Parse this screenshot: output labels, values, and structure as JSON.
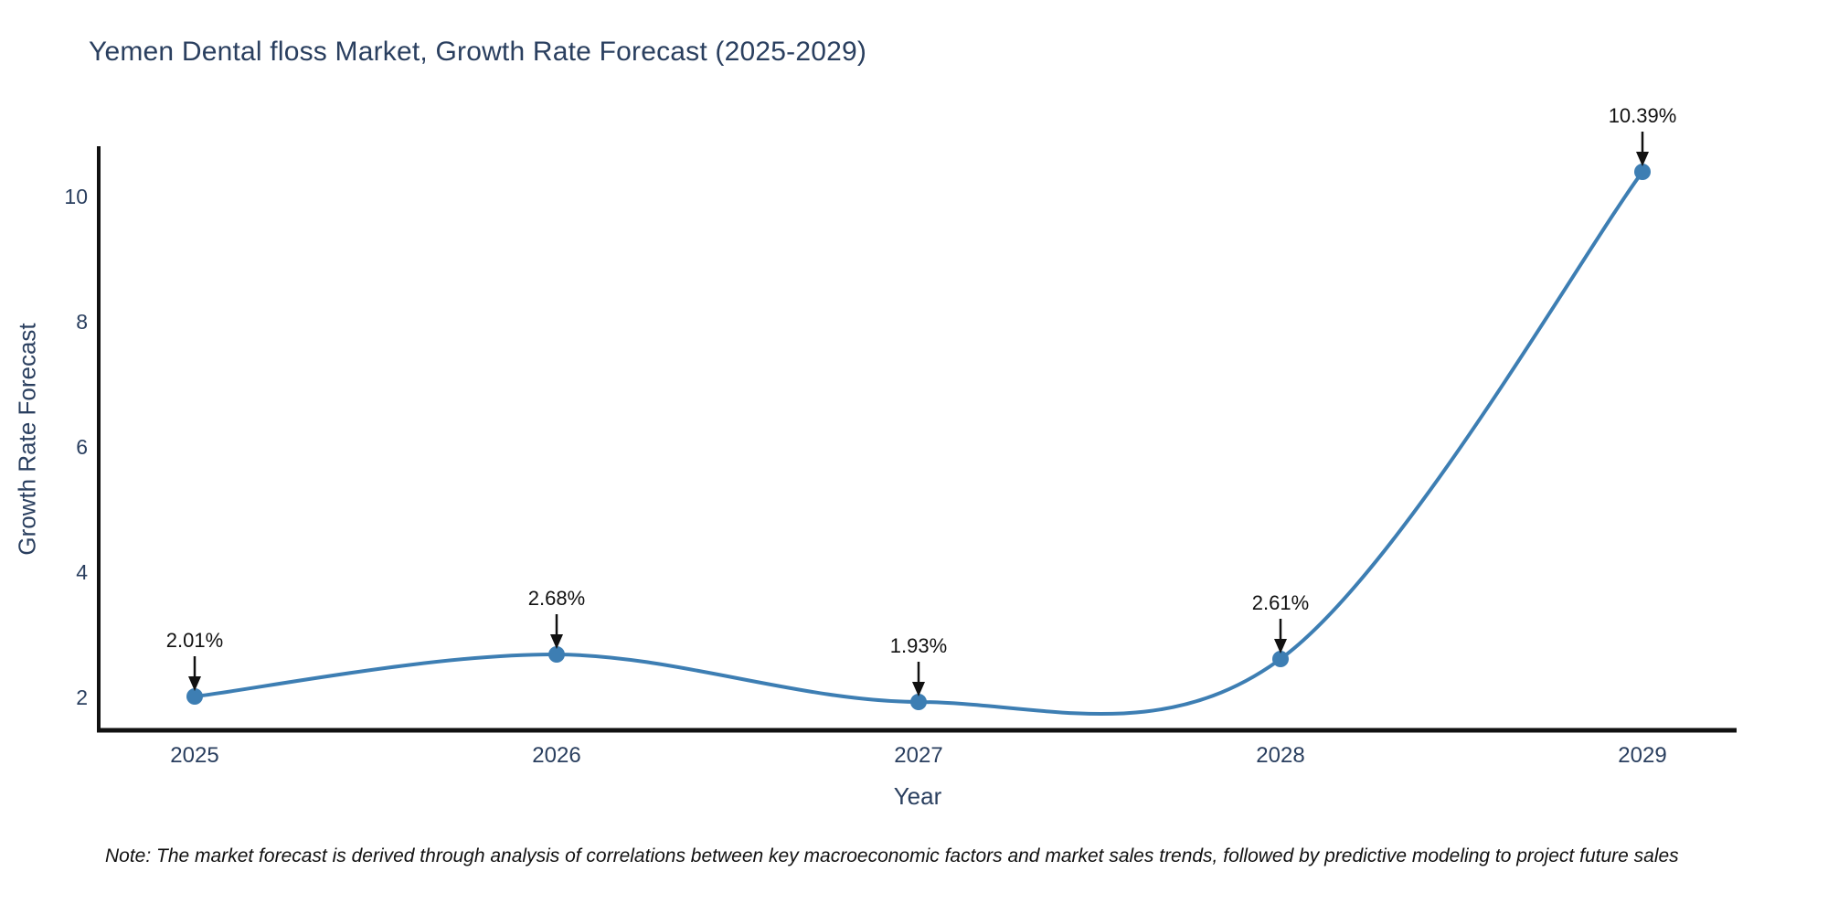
{
  "title": "Yemen Dental floss Market, Growth Rate Forecast (2025-2029)",
  "note": "Note: The market forecast is derived through analysis of correlations between key macroeconomic factors and market sales trends, followed by predictive modeling to project future sales",
  "colors": {
    "line": "#3d7eb3",
    "marker": "#3d7eb3",
    "axis": "#111111",
    "tick_text": "#2a3f5f",
    "annotation": "#111111",
    "background": "#ffffff"
  },
  "chart_data": {
    "type": "line",
    "title": "Yemen Dental floss Market, Growth Rate Forecast (2025-2029)",
    "xlabel": "Year",
    "ylabel": "Growth Rate Forecast",
    "categories": [
      "2025",
      "2026",
      "2027",
      "2028",
      "2029"
    ],
    "series": [
      {
        "name": "Growth Rate Forecast",
        "values": [
          2.01,
          2.68,
          1.93,
          2.61,
          10.39
        ]
      }
    ],
    "point_labels": [
      "2.01%",
      "2.68%",
      "1.93%",
      "2.61%",
      "10.39%"
    ],
    "yticks": [
      2,
      4,
      6,
      8,
      10
    ],
    "ylim": [
      1.47,
      10.81
    ],
    "line_shape": "spline",
    "markers": true,
    "grid": false,
    "legend": false
  }
}
